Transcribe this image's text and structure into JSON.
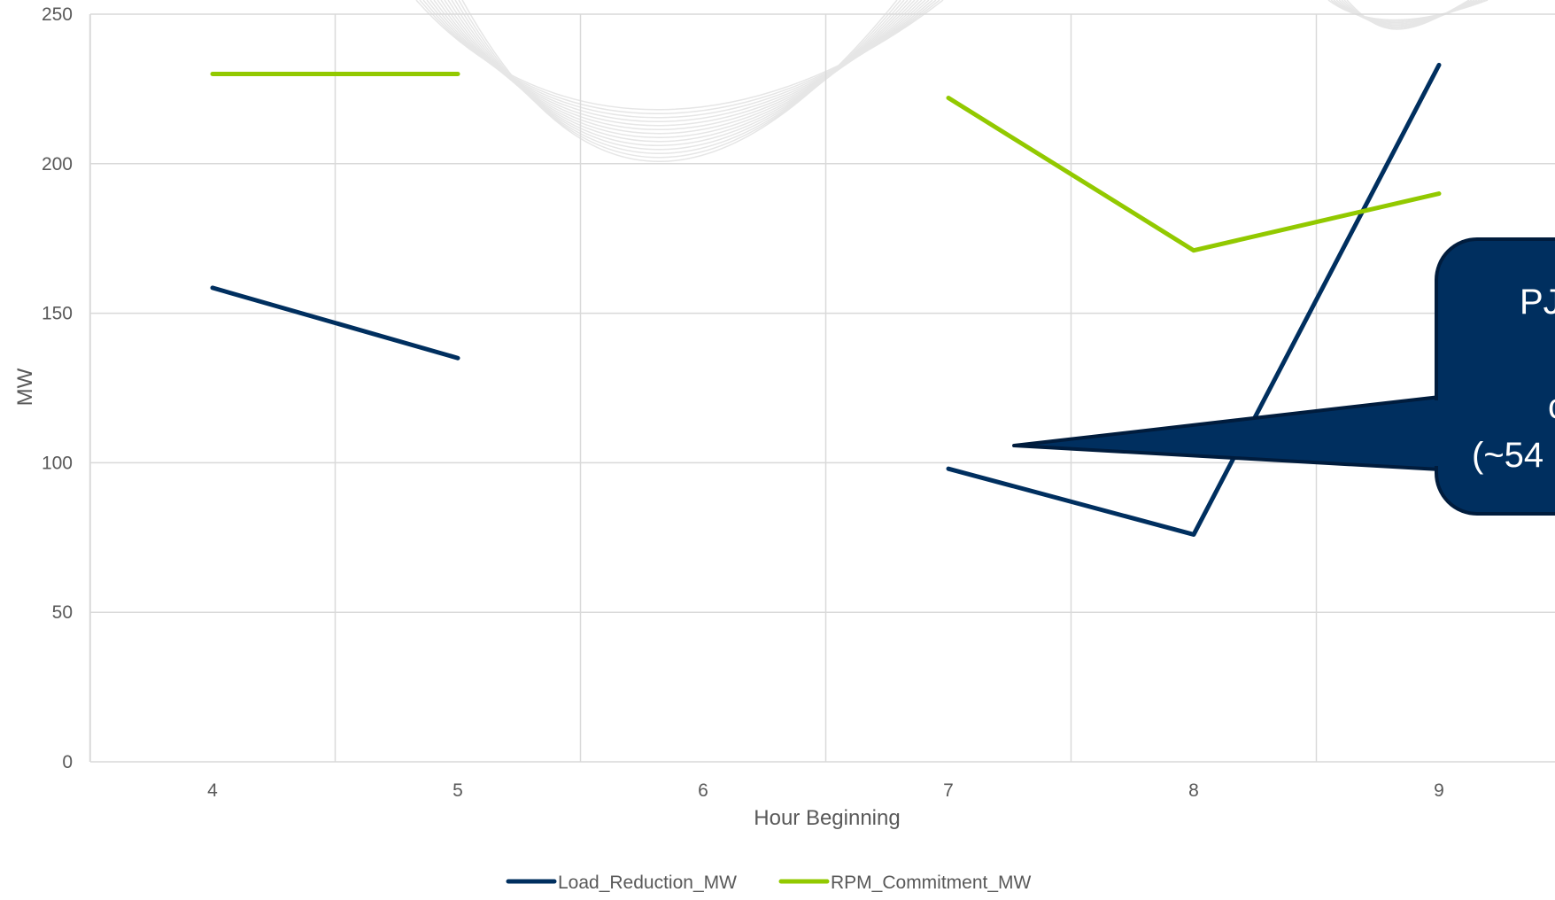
{
  "chart_data": {
    "type": "line",
    "categories": [
      "4",
      "5",
      "6",
      "7",
      "8",
      "9"
    ],
    "x": [
      4,
      5,
      6,
      7,
      8,
      9
    ],
    "xlabel": "Hour Beginning",
    "ylabel": "MW",
    "ylim": [
      0,
      250
    ],
    "yticks": [
      "0",
      "50",
      "100",
      "150",
      "200",
      "250"
    ],
    "grid": true,
    "legend": "bottom",
    "series": [
      {
        "name": "Load_Reduction_MW",
        "color": "#002f5f",
        "values": [
          158.5,
          135,
          null,
          98,
          76,
          233
        ]
      },
      {
        "name": "RPM_Commitment_MW",
        "color": "#92c900",
        "values": [
          230,
          230,
          null,
          222,
          171,
          190
        ]
      }
    ],
    "callout": {
      "lines": [
        "PJ",
        "c",
        "(~54"
      ],
      "fill": "#002f5f",
      "text_color": "#ffffff"
    }
  }
}
